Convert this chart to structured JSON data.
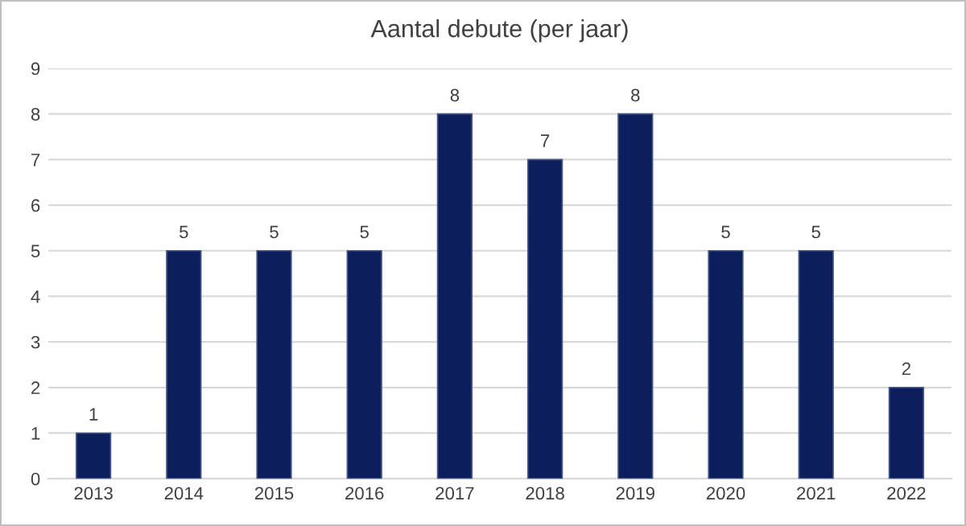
{
  "chart_data": {
    "type": "bar",
    "title": "Aantal debute (per jaar)",
    "categories": [
      "2013",
      "2014",
      "2015",
      "2016",
      "2017",
      "2018",
      "2019",
      "2020",
      "2021",
      "2022"
    ],
    "values": [
      1,
      5,
      5,
      5,
      8,
      7,
      8,
      5,
      5,
      2
    ],
    "color": "#0c1f5c",
    "ylim": [
      0,
      9
    ],
    "yticks": [
      0,
      1,
      2,
      3,
      4,
      5,
      6,
      7,
      8,
      9
    ],
    "grid": "y",
    "data_labels": true,
    "legend": false
  }
}
